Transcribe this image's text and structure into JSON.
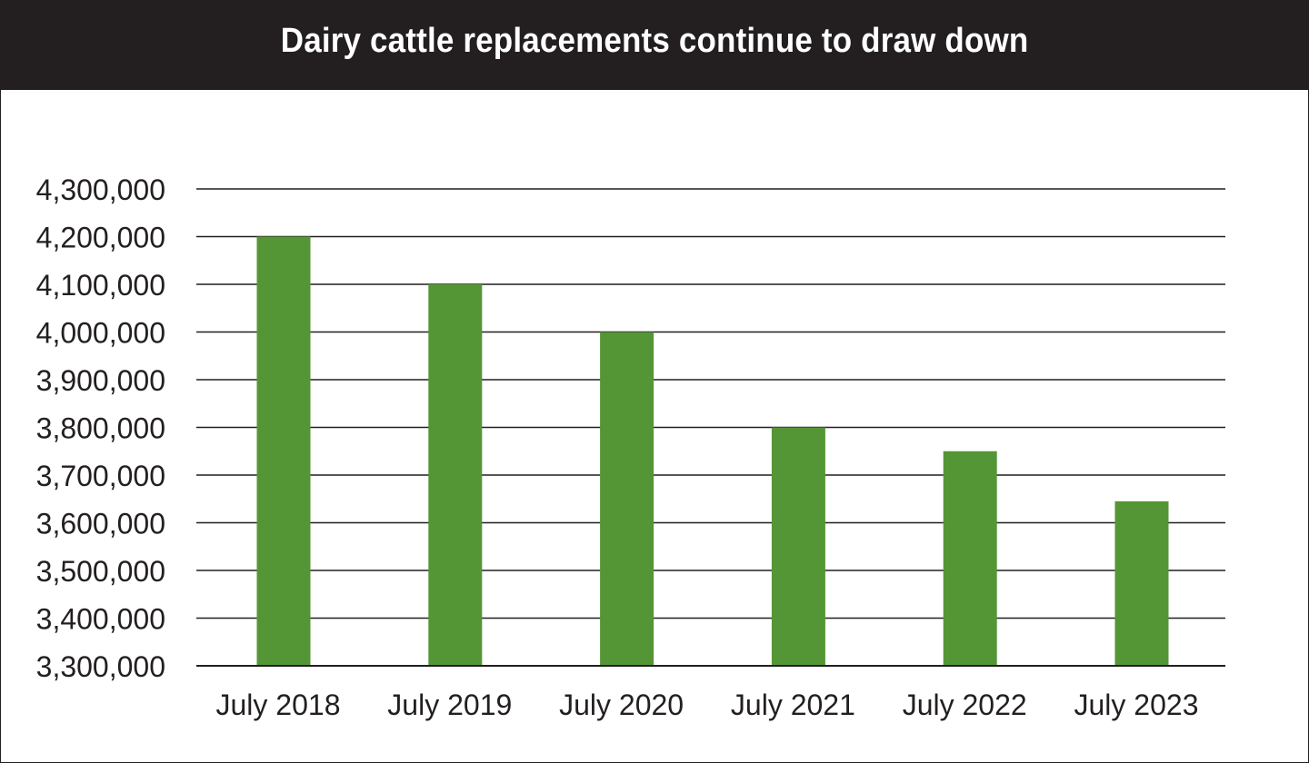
{
  "title": "Dairy cattle replacements continue to draw down",
  "colors": {
    "bar": "#549635",
    "header_bg": "#231f20",
    "header_text": "#ffffff",
    "grid": "#231f20",
    "text": "#231f20"
  },
  "chart_data": {
    "type": "bar",
    "title": "Dairy cattle replacements continue to draw down",
    "xlabel": "",
    "ylabel": "",
    "categories": [
      "July 2018",
      "July 2019",
      "July 2020",
      "July 2021",
      "July 2022",
      "July 2023"
    ],
    "values": [
      4200000,
      4100000,
      4000000,
      3800000,
      3750000,
      3645000
    ],
    "ylim": [
      3300000,
      4300000
    ],
    "y_ticks": [
      3300000,
      3400000,
      3500000,
      3600000,
      3700000,
      3800000,
      3900000,
      4000000,
      4100000,
      4200000,
      4300000
    ],
    "y_tick_labels": [
      "3,300,000",
      "3,400,000",
      "3,500,000",
      "3,600,000",
      "3,700,000",
      "3,800,000",
      "3,900,000",
      "4,000,000",
      "4,100,000",
      "4,200,000",
      "4,300,000"
    ],
    "grid": true,
    "legend": "none"
  }
}
